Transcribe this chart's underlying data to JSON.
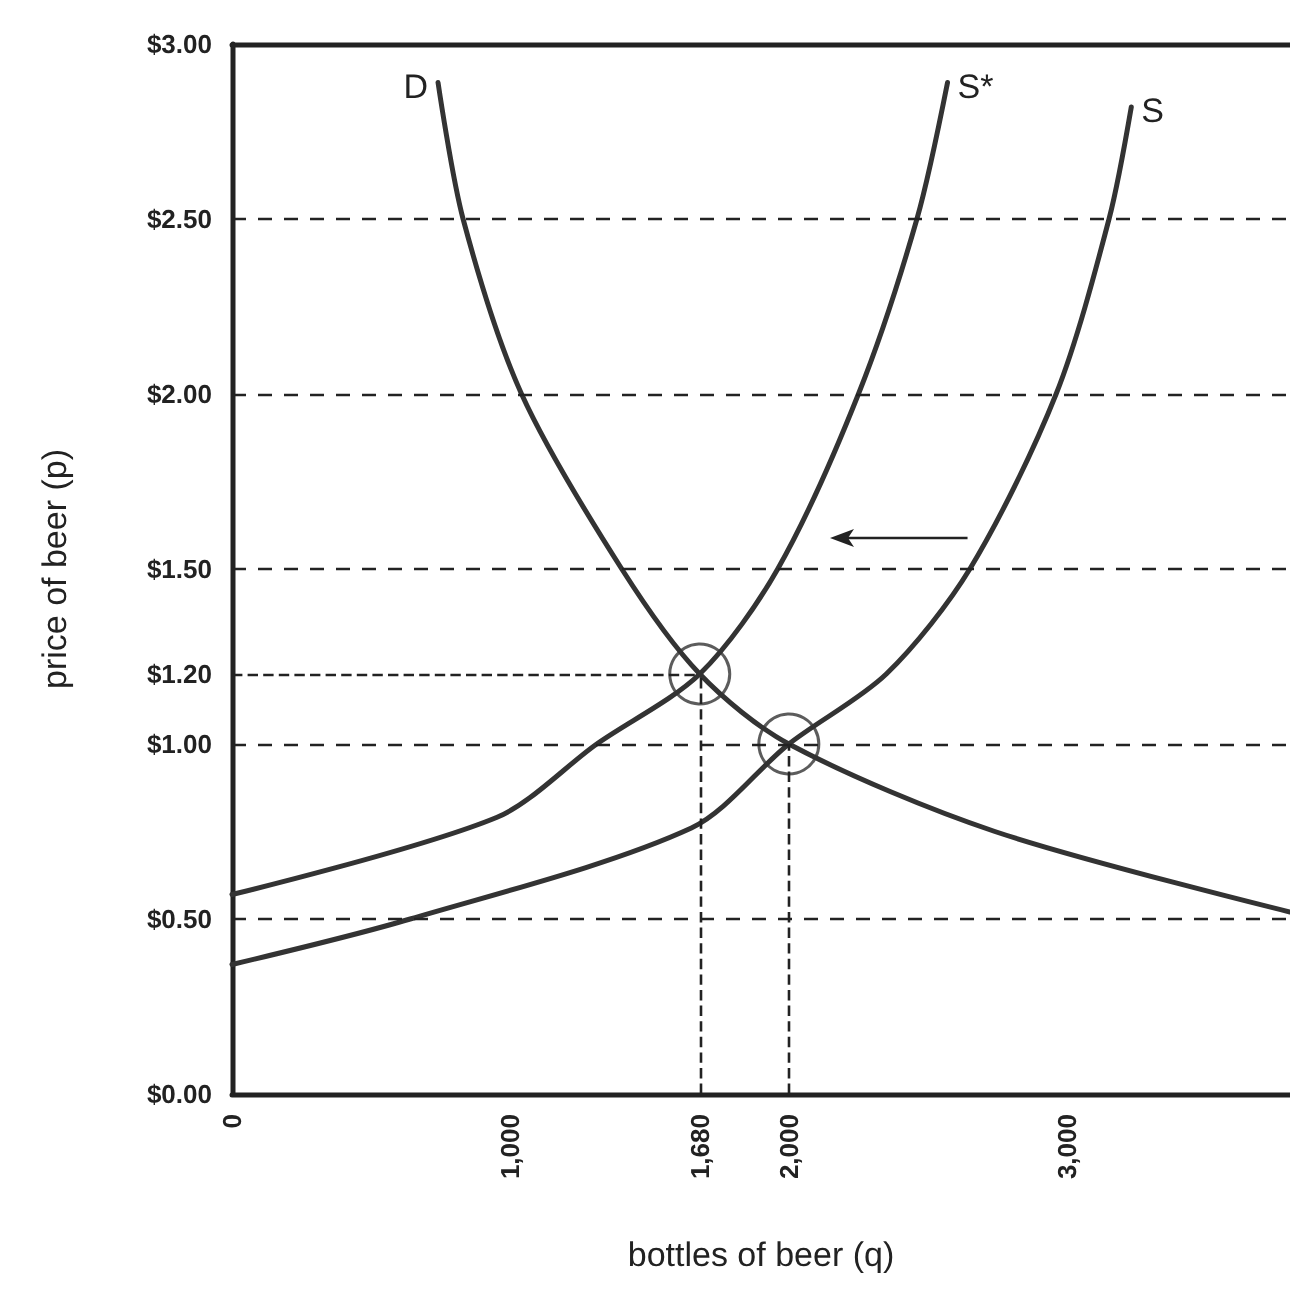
{
  "chart_data": {
    "type": "line",
    "xlabel": "bottles of beer (q)",
    "ylabel": "price of beer (p)",
    "xlim": [
      0,
      3800
    ],
    "ylim": [
      0,
      3
    ],
    "xticks": [
      0,
      {
        "value": 1000,
        "label": "1,000"
      },
      {
        "value": 1680,
        "label": "1,680"
      },
      {
        "value": 2000,
        "label": "2,000"
      },
      {
        "value": 3000,
        "label": "3,000"
      }
    ],
    "yticks": [
      {
        "value": 0,
        "label": "$0.00"
      },
      {
        "value": 0.5,
        "label": "$0.50"
      },
      {
        "value": 1,
        "label": "$1.00"
      },
      {
        "value": 1.2,
        "label": "$1.20"
      },
      {
        "value": 1.5,
        "label": "$1.50"
      },
      {
        "value": 2,
        "label": "$2.00"
      },
      {
        "value": 2.5,
        "label": "$2.50"
      },
      {
        "value": 3,
        "label": "$3.00"
      }
    ],
    "grid": "y",
    "line_style": "solid",
    "marker": "none",
    "series": [
      {
        "name": "D",
        "color": "#333333",
        "x": [
          740,
          830,
          1040,
          1400,
          1680,
          2000,
          2740,
          3800
        ],
        "values": [
          2.89,
          2.5,
          2.0,
          1.5,
          1.2,
          1.0,
          0.75,
          0.52
        ]
      },
      {
        "name": "S*",
        "color": "#333333",
        "x": [
          0,
          950,
          1310,
          1680,
          1960,
          2250,
          2460,
          2570
        ],
        "values": [
          0.57,
          0.79,
          1.0,
          1.2,
          1.5,
          2.0,
          2.5,
          2.89
        ]
      },
      {
        "name": "S",
        "color": "#333333",
        "x": [
          0,
          640,
          1650,
          2000,
          2350,
          2650,
          2960,
          3150,
          3230
        ],
        "values": [
          0.37,
          0.5,
          0.76,
          1.0,
          1.2,
          1.5,
          2.0,
          2.5,
          2.82
        ]
      },
      {
        "type": "scatter",
        "marker": "circle",
        "color": "#333333",
        "x": [
          1680,
          2000
        ],
        "values": [
          1.2,
          1.0
        ]
      }
    ],
    "ref_lines": [
      {
        "axis": "x",
        "value": 1680,
        "line_style": "dashed"
      },
      {
        "axis": "x",
        "value": 2000,
        "line_style": "dashed"
      },
      {
        "axis": "y",
        "value": 1.2,
        "line_style": "dashed"
      }
    ]
  }
}
